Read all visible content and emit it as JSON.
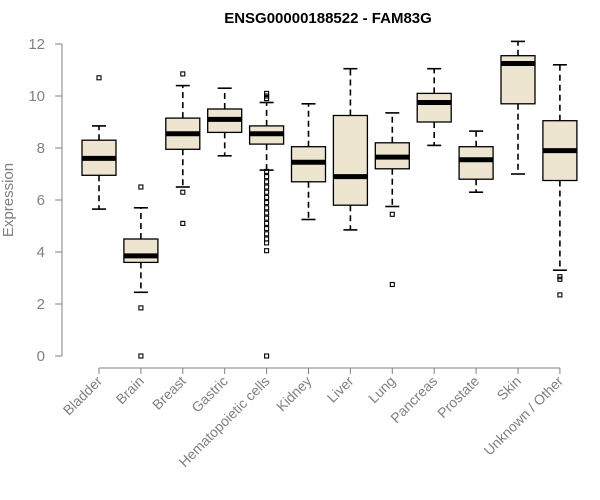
{
  "chart_data": {
    "type": "boxplot",
    "title": "ENSG00000188522 - FAM83G",
    "xlabel": "",
    "ylabel": "Expression",
    "ylim": [
      0,
      12
    ],
    "yticks": [
      0,
      2,
      4,
      6,
      8,
      10,
      12
    ],
    "colors": {
      "box_fill": "#ede5cf",
      "median": "#000000",
      "axis": "#808080",
      "text": "#808080"
    },
    "categories": [
      "Bladder",
      "Brain",
      "Breast",
      "Gastric",
      "Hematopoietic cells",
      "Kidney",
      "Liver",
      "Lung",
      "Pancreas",
      "Prostate",
      "Skin",
      "Unknown / Other"
    ],
    "boxes": [
      {
        "category": "Bladder",
        "whisker_low": 5.65,
        "q1": 6.95,
        "median": 7.6,
        "q3": 8.3,
        "whisker_high": 8.85,
        "outliers": [
          10.7
        ]
      },
      {
        "category": "Brain",
        "whisker_low": 2.45,
        "q1": 3.6,
        "median": 3.85,
        "q3": 4.5,
        "whisker_high": 5.7,
        "outliers": [
          6.5,
          1.85,
          0.0
        ]
      },
      {
        "category": "Breast",
        "whisker_low": 6.5,
        "q1": 7.95,
        "median": 8.55,
        "q3": 9.15,
        "whisker_high": 10.4,
        "outliers": [
          10.85,
          6.3,
          5.1
        ]
      },
      {
        "category": "Gastric",
        "whisker_low": 7.7,
        "q1": 8.6,
        "median": 9.1,
        "q3": 9.5,
        "whisker_high": 10.3,
        "outliers": []
      },
      {
        "category": "Hematopoietic cells",
        "whisker_low": 7.15,
        "q1": 8.15,
        "median": 8.55,
        "q3": 8.85,
        "whisker_high": 9.75,
        "outliers": [
          10.1,
          9.9,
          10.0,
          7.1,
          6.9,
          6.7,
          6.5,
          6.3,
          6.1,
          5.9,
          5.7,
          5.5,
          5.3,
          5.1,
          4.9,
          4.7,
          4.5,
          4.35,
          4.05,
          0.0
        ]
      },
      {
        "category": "Kidney",
        "whisker_low": 5.25,
        "q1": 6.7,
        "median": 7.45,
        "q3": 8.05,
        "whisker_high": 9.7,
        "outliers": []
      },
      {
        "category": "Liver",
        "whisker_low": 4.85,
        "q1": 5.8,
        "median": 6.9,
        "q3": 9.25,
        "whisker_high": 11.05,
        "outliers": []
      },
      {
        "category": "Lung",
        "whisker_low": 5.75,
        "q1": 7.2,
        "median": 7.65,
        "q3": 8.2,
        "whisker_high": 9.35,
        "outliers": [
          5.45,
          2.75
        ]
      },
      {
        "category": "Pancreas",
        "whisker_low": 8.1,
        "q1": 9.0,
        "median": 9.75,
        "q3": 10.1,
        "whisker_high": 11.05,
        "outliers": []
      },
      {
        "category": "Prostate",
        "whisker_low": 6.3,
        "q1": 6.8,
        "median": 7.55,
        "q3": 8.05,
        "whisker_high": 8.65,
        "outliers": []
      },
      {
        "category": "Skin",
        "whisker_low": 7.0,
        "q1": 9.7,
        "median": 11.25,
        "q3": 11.55,
        "whisker_high": 12.1,
        "outliers": []
      },
      {
        "category": "Unknown / Other",
        "whisker_low": 3.3,
        "q1": 6.75,
        "median": 7.9,
        "q3": 9.05,
        "whisker_high": 11.2,
        "outliers": [
          3.05,
          2.95,
          2.35
        ]
      }
    ]
  }
}
